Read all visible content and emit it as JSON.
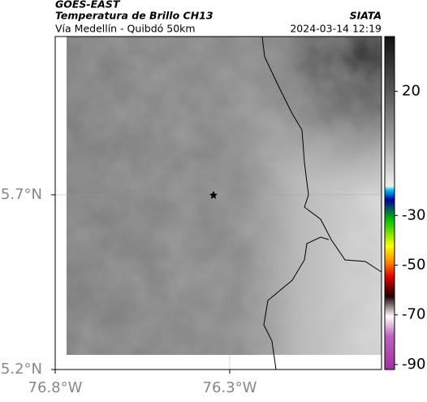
{
  "header": {
    "source": "GOES-EAST",
    "title": "Temperatura de Brillo CH13",
    "org": "SIATA",
    "subtitle": "Vía Medellín - Quibdó 50km",
    "datetime": "2024-03-14 12:19"
  },
  "map": {
    "xlim": [
      -76.8,
      -75.865
    ],
    "ylim": [
      5.2,
      6.153
    ],
    "xticks": [
      {
        "value": -76.8,
        "label": "76.8°W"
      },
      {
        "value": -76.3,
        "label": "76.3°W"
      }
    ],
    "yticks": [
      {
        "value": 5.7,
        "label": "5.7°N"
      },
      {
        "value": 5.2,
        "label": "5.2°N"
      }
    ]
  },
  "colorbar": {
    "lim": [
      -92,
      42
    ],
    "ticks": [
      20,
      -30,
      -50,
      -70,
      -90
    ]
  }
}
